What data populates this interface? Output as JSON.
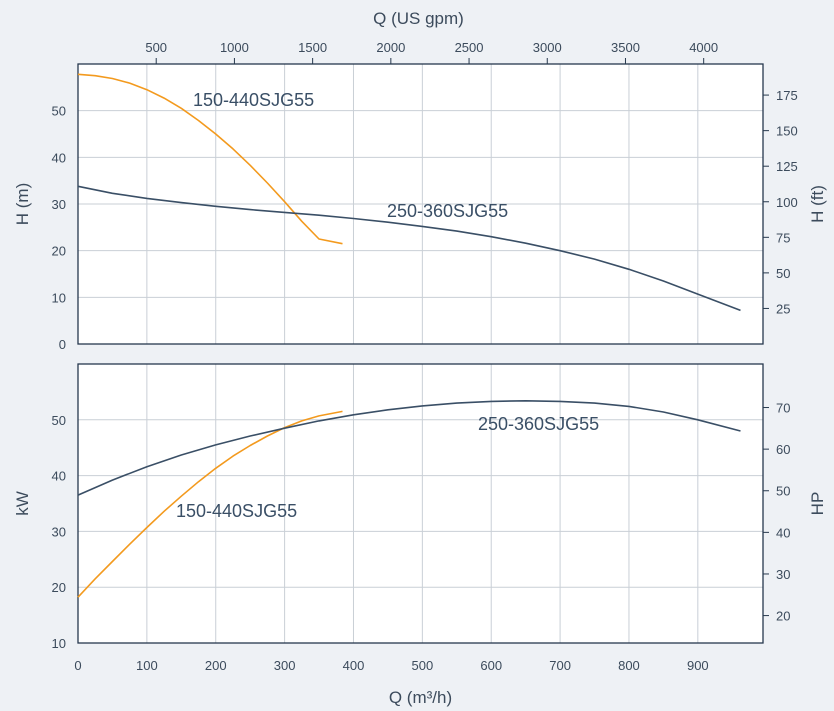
{
  "colors": {
    "background": "#eef1f5",
    "plot_background": "#ffffff",
    "grid": "#c9cfd6",
    "frame": "#26384d",
    "text": "#3c4b5c",
    "series_a": "#f39a1e",
    "series_b": "#3a4f66"
  },
  "chart_data": [
    {
      "type": "line",
      "name": "head",
      "xlabel": "Q (m³/h)",
      "x2label": "Q (US gpm)",
      "ylabel": "H (m)",
      "y2label": "H (ft)",
      "xlim": [
        0,
        1000
      ],
      "ylim": [
        0,
        60
      ],
      "xticks": [
        0,
        100,
        200,
        300,
        400,
        500,
        600,
        700,
        800,
        900
      ],
      "yticks": [
        0,
        10,
        20,
        30,
        40,
        50
      ],
      "x2ticks": [
        500,
        1000,
        1500,
        2000,
        2500,
        3000,
        3500,
        4000
      ],
      "y2ticks": [
        25,
        50,
        75,
        100,
        125,
        150,
        175
      ],
      "grid": true,
      "series": [
        {
          "name": "150-440SJG55",
          "color": "#f39a1e",
          "x": [
            0,
            25,
            50,
            75,
            100,
            125,
            150,
            175,
            200,
            225,
            250,
            275,
            300,
            325,
            350,
            384
          ],
          "y": [
            57.8,
            57.5,
            56.9,
            55.9,
            54.5,
            52.7,
            50.5,
            47.9,
            45.0,
            41.8,
            38.3,
            34.5,
            30.5,
            26.3,
            22.5,
            21.5
          ]
        },
        {
          "name": "250-360SJG55",
          "color": "#3a4f66",
          "x": [
            0,
            50,
            100,
            150,
            200,
            250,
            300,
            350,
            400,
            450,
            500,
            550,
            600,
            650,
            700,
            750,
            800,
            850,
            900,
            962
          ],
          "y": [
            33.8,
            32.3,
            31.2,
            30.3,
            29.5,
            28.8,
            28.2,
            27.6,
            26.9,
            26.1,
            25.2,
            24.2,
            23.0,
            21.6,
            20.0,
            18.2,
            16.0,
            13.5,
            10.7,
            7.2
          ]
        }
      ]
    },
    {
      "type": "line",
      "name": "power",
      "xlabel": "Q (m³/h)",
      "ylabel": "kW",
      "y2label": "HP",
      "xlim": [
        0,
        1000
      ],
      "ylim": [
        10,
        60
      ],
      "xticks": [
        0,
        100,
        200,
        300,
        400,
        500,
        600,
        700,
        800,
        900
      ],
      "yticks": [
        10,
        20,
        30,
        40,
        50
      ],
      "y2ticks": [
        20,
        30,
        40,
        50,
        60,
        70
      ],
      "grid": true,
      "series": [
        {
          "name": "150-440SJG55",
          "color": "#f39a1e",
          "x": [
            0,
            25,
            50,
            75,
            100,
            125,
            150,
            175,
            200,
            225,
            250,
            275,
            300,
            325,
            350,
            384
          ],
          "y": [
            18.2,
            21.5,
            24.6,
            27.7,
            30.7,
            33.6,
            36.3,
            38.9,
            41.3,
            43.5,
            45.4,
            47.1,
            48.6,
            49.8,
            50.7,
            51.5
          ]
        },
        {
          "name": "250-360SJG55",
          "color": "#3a4f66",
          "x": [
            0,
            50,
            100,
            150,
            200,
            250,
            300,
            350,
            400,
            450,
            500,
            550,
            600,
            650,
            700,
            750,
            800,
            850,
            900,
            962
          ],
          "y": [
            36.5,
            39.2,
            41.6,
            43.7,
            45.5,
            47.1,
            48.5,
            49.8,
            50.9,
            51.8,
            52.5,
            53.0,
            53.3,
            53.4,
            53.3,
            53.0,
            52.4,
            51.4,
            50.0,
            48.0
          ]
        }
      ]
    }
  ]
}
